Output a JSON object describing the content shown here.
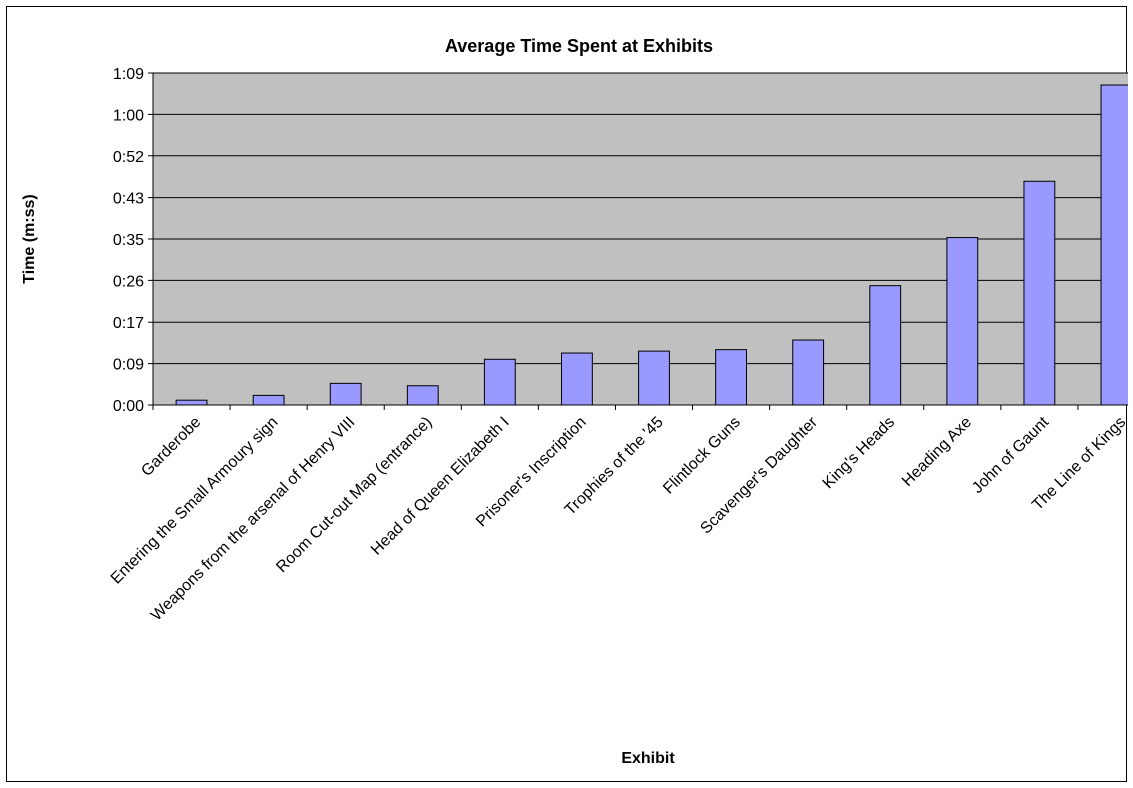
{
  "chart_data": {
    "type": "bar",
    "title": "Average Time Spent at Exhibits",
    "xlabel": "Exhibit",
    "ylabel": "Time (m:ss)",
    "y_unit": "seconds",
    "ylim": [
      0,
      69
    ],
    "y_ticks": [
      0,
      8.6,
      17.2,
      25.9,
      34.5,
      43.1,
      51.8,
      60.4,
      69
    ],
    "y_tick_labels": [
      "0:00",
      "0:09",
      "0:17",
      "0:26",
      "0:35",
      "0:43",
      "0:52",
      "1:00",
      "1:09"
    ],
    "grid": true,
    "legend": "none",
    "plot_background": "#c0c0c0",
    "bar_color": "#9999ff",
    "categories": [
      "Garderobe",
      "Entering the Small Armoury sign",
      "Weapons from the arsenal of Henry VIII",
      "Room Cut-out Map (entrance)",
      "Head of Queen Elizabeth I",
      "Prisoner's Inscription",
      "Trophies of the '45",
      "Flintlock Guns",
      "Scavenger's Daughter",
      "King's Heads",
      "Heading Axe",
      "John of Gaunt",
      "The Line of Kings"
    ],
    "values": [
      1,
      2,
      4.5,
      4,
      9.5,
      10.8,
      11.2,
      11.5,
      13.5,
      24.8,
      34.8,
      46.5,
      66.5
    ]
  }
}
